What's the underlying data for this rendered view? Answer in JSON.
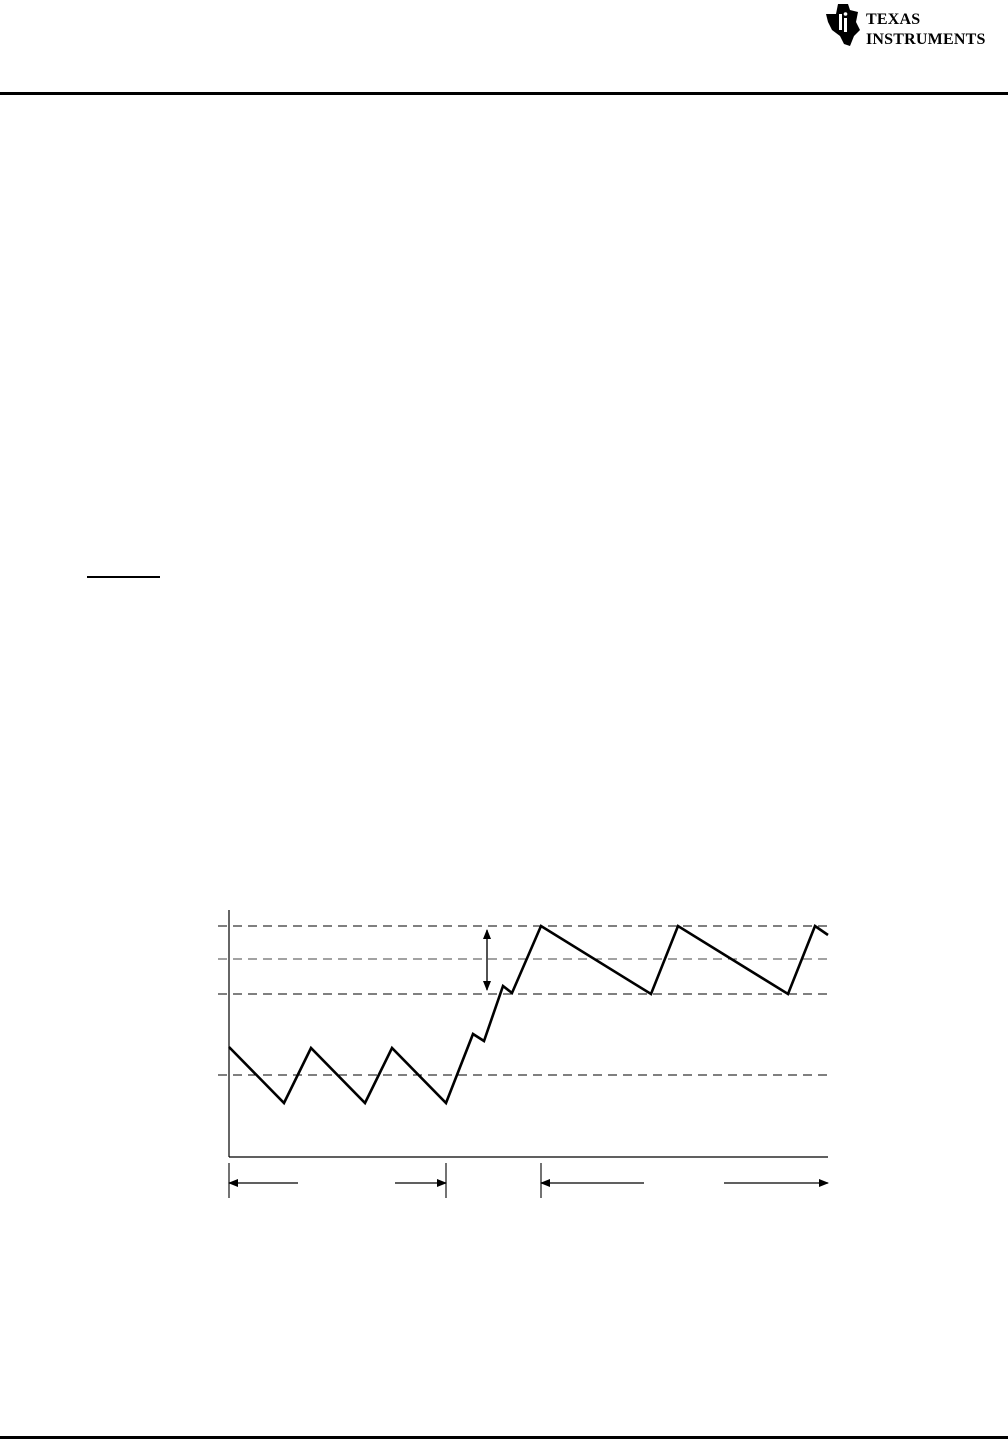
{
  "header": {
    "logo": {
      "line1": "TEXAS",
      "line2": "INSTRUMENTS",
      "icon": "ti-state-logo-icon"
    }
  },
  "colors": {
    "ink": "#000000",
    "dash": "#000000",
    "background": "#ffffff"
  }
}
